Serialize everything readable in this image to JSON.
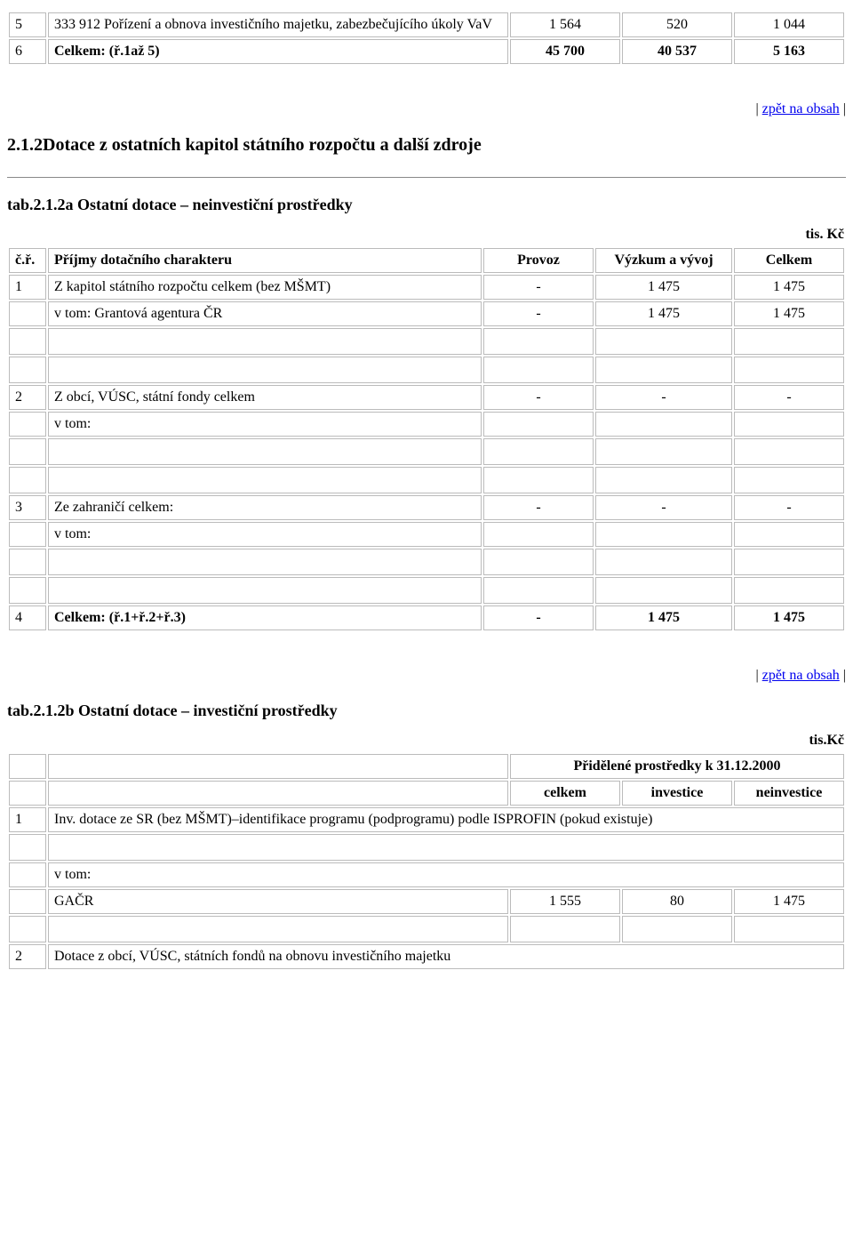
{
  "topTable": {
    "rows": [
      {
        "n": "5",
        "desc": "333 912 Pořízení a obnova investičního majetku, zabezbečujícího úkoly VaV",
        "c1": "1 564",
        "c2": "520",
        "c3": "1 044",
        "bold": false
      },
      {
        "n": "6",
        "desc": "Celkem: (ř.1až 5)",
        "c1": "45 700",
        "c2": "40 537",
        "c3": "5 163",
        "bold": true
      }
    ]
  },
  "backLink": {
    "prefix": "|",
    "text": "zpět na obsah",
    "suffix": "|"
  },
  "section212": {
    "heading": "2.1.2Dotace z ostatních kapitol státního rozpočtu a další zdroje"
  },
  "tab212a": {
    "heading": "tab.2.1.2a Ostatní dotace – neinvestiční prostředky",
    "unit": "tis. Kč",
    "header": {
      "col0": "č.ř.",
      "col1": "Příjmy dotačního charakteru",
      "col2": "Provoz",
      "col3": "Výzkum a vývoj",
      "col4": "Celkem"
    },
    "r1": {
      "n": "1",
      "desc": "Z kapitol státního rozpočtu celkem (bez MŠMT)",
      "c1": "-",
      "c2": "1 475",
      "c3": "1 475"
    },
    "r1a": {
      "desc": "v tom: Grantová agentura ČR",
      "c1": "-",
      "c2": "1 475",
      "c3": "1 475"
    },
    "r2": {
      "n": "2",
      "desc": "Z obcí, VÚSC, státní fondy celkem",
      "c1": "-",
      "c2": "-",
      "c3": "-"
    },
    "r2a": {
      "desc": "v tom:"
    },
    "r3": {
      "n": "3",
      "desc": "Ze zahraničí celkem:",
      "c1": "-",
      "c2": "-",
      "c3": "-"
    },
    "r3a": {
      "desc": "v tom:"
    },
    "r4": {
      "n": "4",
      "desc": "Celkem: (ř.1+ř.2+ř.3)",
      "c1": "-",
      "c2": "1 475",
      "c3": "1 475"
    }
  },
  "tab212b": {
    "heading": "tab.2.1.2b Ostatní dotace – investiční prostředky",
    "unit": "tis.Kč",
    "hdrSpan": "Přidělené prostředky k 31.12.2000",
    "hdr": {
      "c1": "celkem",
      "c2": "investice",
      "c3": "neinvestice"
    },
    "r1": {
      "n": "1",
      "desc": "Inv. dotace ze SR (bez MŠMT)–identifikace programu (podprogramu) podle ISPROFIN (pokud existuje)"
    },
    "r1a": {
      "desc": "v tom:"
    },
    "r1b": {
      "desc": "GAČR",
      "c1": "1 555",
      "c2": "80",
      "c3": "1 475"
    },
    "r2": {
      "n": "2",
      "desc": "Dotace z obcí, VÚSC, státních fondů na obnovu investičního majetku"
    }
  }
}
